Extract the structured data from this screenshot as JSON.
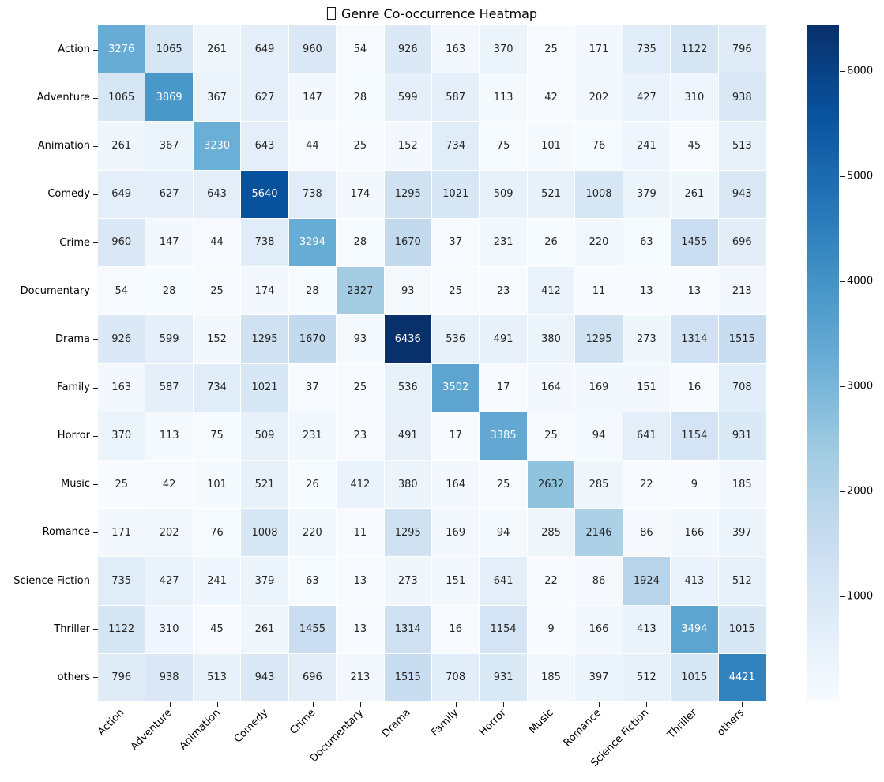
{
  "title": {
    "missing_glyph": "tofu-box",
    "text": "Genre Co-occurrence Heatmap"
  },
  "chart_data": {
    "type": "heatmap",
    "title": "Genre Co-occurrence Heatmap",
    "categories": [
      "Action",
      "Adventure",
      "Animation",
      "Comedy",
      "Crime",
      "Documentary",
      "Drama",
      "Family",
      "Horror",
      "Music",
      "Romance",
      "Science Fiction",
      "Thriller",
      "others"
    ],
    "matrix": [
      [
        3276,
        1065,
        261,
        649,
        960,
        54,
        926,
        163,
        370,
        25,
        171,
        735,
        1122,
        796
      ],
      [
        1065,
        3869,
        367,
        627,
        147,
        28,
        599,
        587,
        113,
        42,
        202,
        427,
        310,
        938
      ],
      [
        261,
        367,
        3230,
        643,
        44,
        25,
        152,
        734,
        75,
        101,
        76,
        241,
        45,
        513
      ],
      [
        649,
        627,
        643,
        5640,
        738,
        174,
        1295,
        1021,
        509,
        521,
        1008,
        379,
        261,
        943
      ],
      [
        960,
        147,
        44,
        738,
        3294,
        28,
        1670,
        37,
        231,
        26,
        220,
        63,
        1455,
        696
      ],
      [
        54,
        28,
        25,
        174,
        28,
        2327,
        93,
        25,
        23,
        412,
        11,
        13,
        13,
        213
      ],
      [
        926,
        599,
        152,
        1295,
        1670,
        93,
        6436,
        536,
        491,
        380,
        1295,
        273,
        1314,
        1515
      ],
      [
        163,
        587,
        734,
        1021,
        37,
        25,
        536,
        3502,
        17,
        164,
        169,
        151,
        16,
        708
      ],
      [
        370,
        113,
        75,
        509,
        231,
        23,
        491,
        17,
        3385,
        25,
        94,
        641,
        1154,
        931
      ],
      [
        25,
        42,
        101,
        521,
        26,
        412,
        380,
        164,
        25,
        2632,
        285,
        22,
        9,
        185
      ],
      [
        171,
        202,
        76,
        1008,
        220,
        11,
        1295,
        169,
        94,
        285,
        2146,
        86,
        166,
        397
      ],
      [
        735,
        427,
        241,
        379,
        63,
        13,
        273,
        151,
        641,
        22,
        86,
        1924,
        413,
        512
      ],
      [
        1122,
        310,
        45,
        261,
        1455,
        13,
        1314,
        16,
        1154,
        9,
        166,
        413,
        3494,
        1015
      ],
      [
        796,
        938,
        513,
        943,
        696,
        213,
        1515,
        708,
        931,
        185,
        397,
        512,
        1015,
        4421
      ]
    ],
    "vmin": 9,
    "vmax": 6436,
    "colormap": "Blues",
    "colormap_stops": [
      "#f7fbff",
      "#deebf7",
      "#c6dbef",
      "#9ecae1",
      "#6baed6",
      "#4292c6",
      "#2171b5",
      "#08519c",
      "#08306b"
    ],
    "colorbar_ticks": [
      1000,
      2000,
      3000,
      4000,
      5000,
      6000
    ],
    "colorbar_position": "right",
    "annotated": true,
    "x_tick_rotation": 45,
    "grid": false
  },
  "colors": {
    "background": "#ffffff",
    "annotation_dark": "#262626",
    "annotation_light": "#ffffff",
    "tick_color": "#1a1a1a"
  }
}
